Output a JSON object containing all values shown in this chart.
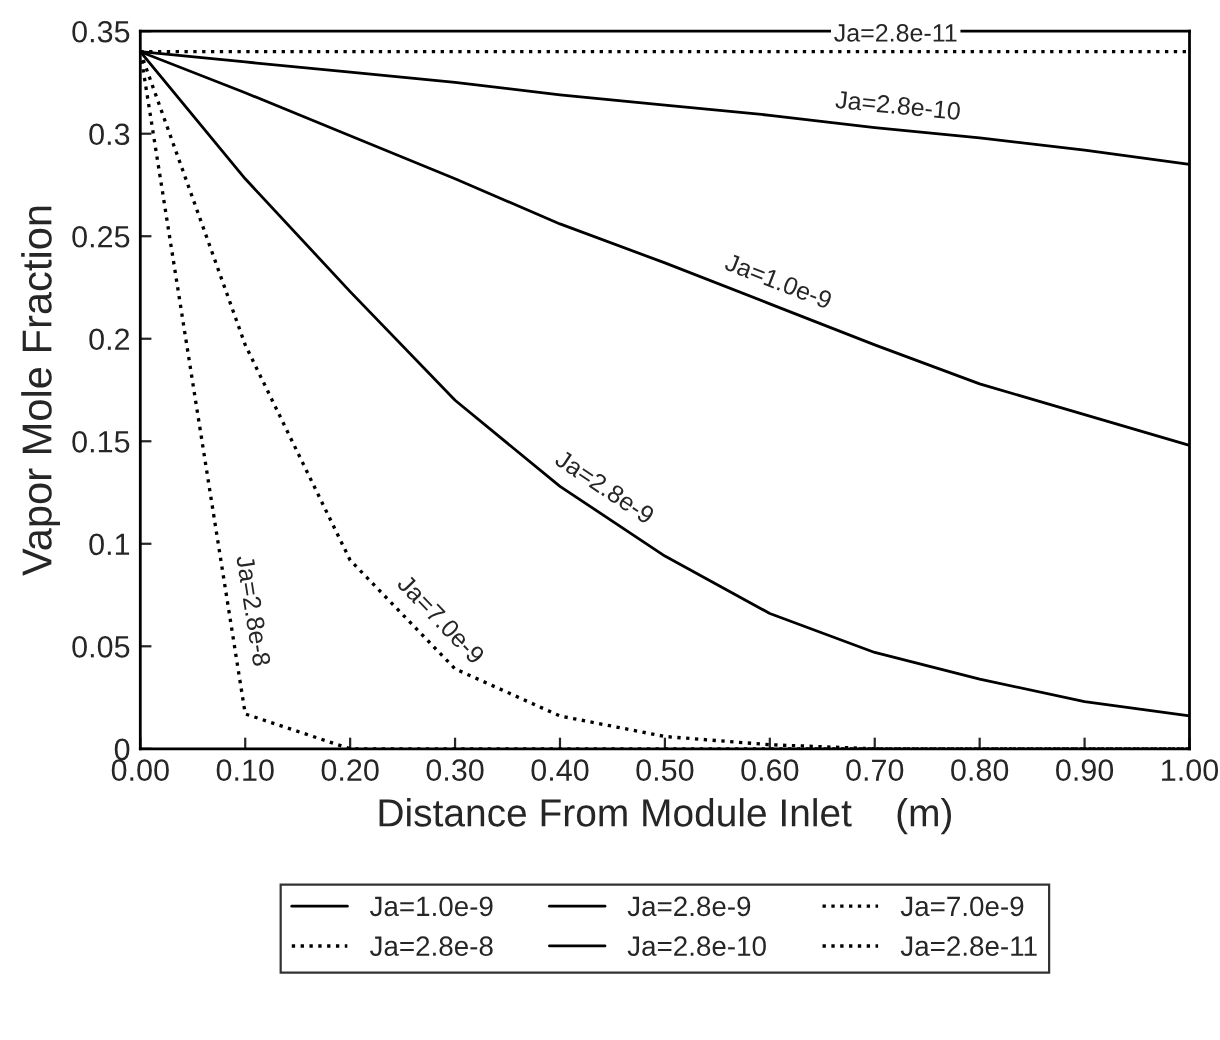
{
  "chart_data": {
    "type": "line",
    "xlabel": "Distance From Module Inlet    (m)",
    "ylabel": "Vapor Mole Fraction",
    "x": [
      0,
      0.1,
      0.2,
      0.3,
      0.4,
      0.5,
      0.6,
      0.7,
      0.8,
      0.9,
      1.0
    ],
    "series": [
      {
        "name": "Ja=1.0e-9",
        "color": "#000000",
        "line_style": "solid",
        "values": [
          0.34,
          0.32,
          0.299,
          0.278,
          0.256,
          0.237,
          0.217,
          0.197,
          0.178,
          0.163,
          0.148
        ]
      },
      {
        "name": "Ja=2.8e-9",
        "color": "#000000",
        "line_style": "solid",
        "values": [
          0.34,
          0.278,
          0.223,
          0.17,
          0.128,
          0.094,
          0.066,
          0.047,
          0.034,
          0.023,
          0.016
        ]
      },
      {
        "name": "Ja=7.0e-9",
        "color": "#000000",
        "line_style": "dotted",
        "values": [
          0.34,
          0.197,
          0.092,
          0.039,
          0.016,
          0.006,
          0.002,
          0,
          0,
          0,
          0
        ]
      },
      {
        "name": "Ja=2.8e-8",
        "color": "#000000",
        "line_style": "dotted",
        "values": [
          0.34,
          0.017,
          0,
          0,
          0,
          0,
          0,
          0,
          0,
          0,
          0
        ]
      },
      {
        "name": "Ja=2.8e-10",
        "color": "#000000",
        "line_style": "solid",
        "values": [
          0.34,
          0.335,
          0.33,
          0.325,
          0.319,
          0.314,
          0.309,
          0.303,
          0.298,
          0.292,
          0.285
        ]
      },
      {
        "name": "Ja=2.8e-11",
        "color": "#000000",
        "line_style": "dotted",
        "values": [
          0.34,
          0.34,
          0.34,
          0.34,
          0.34,
          0.34,
          0.34,
          0.34,
          0.34,
          0.34,
          0.34
        ]
      }
    ],
    "xlim": [
      0,
      1.0
    ],
    "ylim": [
      0,
      0.35
    ],
    "xticks": [
      {
        "value": 0,
        "label": "0.00"
      },
      {
        "value": 0.1,
        "label": "0.10"
      },
      {
        "value": 0.2,
        "label": "0.20"
      },
      {
        "value": 0.3,
        "label": "0.30"
      },
      {
        "value": 0.4,
        "label": "0.40"
      },
      {
        "value": 0.5,
        "label": "0.50"
      },
      {
        "value": 0.6,
        "label": "0.60"
      },
      {
        "value": 0.7,
        "label": "0.70"
      },
      {
        "value": 0.8,
        "label": "0.80"
      },
      {
        "value": 0.9,
        "label": "0.90"
      },
      {
        "value": 1.0,
        "label": "1.00"
      }
    ],
    "yticks": [
      0,
      0.05,
      0.1,
      0.15,
      0.2,
      0.25,
      0.3,
      0.35
    ],
    "grid": false,
    "legend": "bottom",
    "marker": "none"
  }
}
